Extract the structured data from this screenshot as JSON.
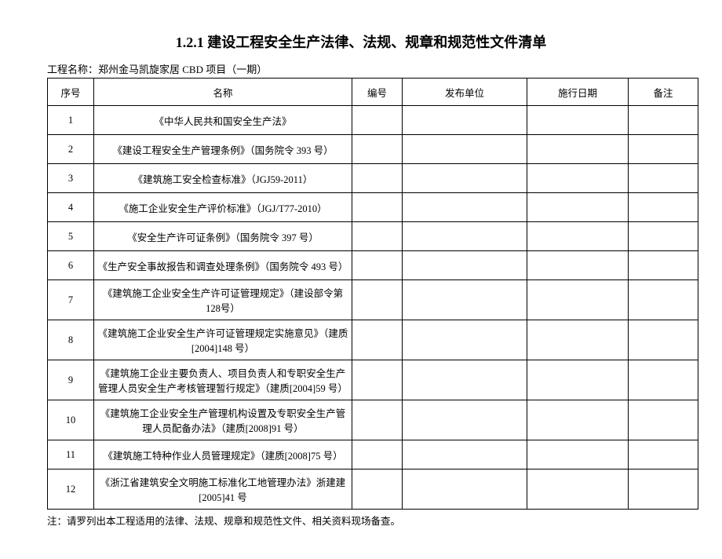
{
  "title": "1.2.1 建设工程安全生产法律、法规、规章和规范性文件清单",
  "project_label": "工程名称：郑州金马凯旋家居 CBD 项目（一期）",
  "headers": {
    "seq": "序号",
    "name": "名称",
    "num": "编号",
    "publisher": "发布单位",
    "date": "施行日期",
    "remark": "备注"
  },
  "rows": [
    {
      "seq": "1",
      "name": "《中华人民共和国安全生产法》",
      "num": "",
      "publisher": "",
      "date": "",
      "remark": ""
    },
    {
      "seq": "2",
      "name": "《建设工程安全生产管理条例》（国务院令 393 号）",
      "num": "",
      "publisher": "",
      "date": "",
      "remark": ""
    },
    {
      "seq": "3",
      "name": "《建筑施工安全检查标准》（JGJ59-2011）",
      "num": "",
      "publisher": "",
      "date": "",
      "remark": ""
    },
    {
      "seq": "4",
      "name": "《施工企业安全生产评价标准》（JGJ/T77-2010）",
      "num": "",
      "publisher": "",
      "date": "",
      "remark": ""
    },
    {
      "seq": "5",
      "name": "《安全生产许可证条例》（国务院令 397 号）",
      "num": "",
      "publisher": "",
      "date": "",
      "remark": ""
    },
    {
      "seq": "6",
      "name": "《生产安全事故报告和调查处理条例》（国务院令 493 号）",
      "num": "",
      "publisher": "",
      "date": "",
      "remark": ""
    },
    {
      "seq": "7",
      "name": "《建筑施工企业安全生产许可证管理规定》（建设部令第 128号）",
      "num": "",
      "publisher": "",
      "date": "",
      "remark": ""
    },
    {
      "seq": "8",
      "name": "《建筑施工企业安全生产许可证管理规定实施意见》（建质[2004]148 号）",
      "num": "",
      "publisher": "",
      "date": "",
      "remark": ""
    },
    {
      "seq": "9",
      "name": "《建筑施工企业主要负责人、项目负责人和专职安全生产管理人员安全生产考核管理暂行规定》（建质[2004]59 号）",
      "num": "",
      "publisher": "",
      "date": "",
      "remark": ""
    },
    {
      "seq": "10",
      "name": "《建筑施工企业安全生产管理机构设置及专职安全生产管理人员配备办法》（建质[2008]91 号）",
      "num": "",
      "publisher": "",
      "date": "",
      "remark": ""
    },
    {
      "seq": "11",
      "name": "《建筑施工特种作业人员管理规定》（建质[2008]75 号）",
      "num": "",
      "publisher": "",
      "date": "",
      "remark": ""
    },
    {
      "seq": "12",
      "name": "《浙江省建筑安全文明施工标准化工地管理办法》浙建建[2005]41 号",
      "num": "",
      "publisher": "",
      "date": "",
      "remark": ""
    }
  ],
  "footnote": "注：请罗列出本工程适用的法律、法规、规章和规范性文件、相关资料现场备查。"
}
